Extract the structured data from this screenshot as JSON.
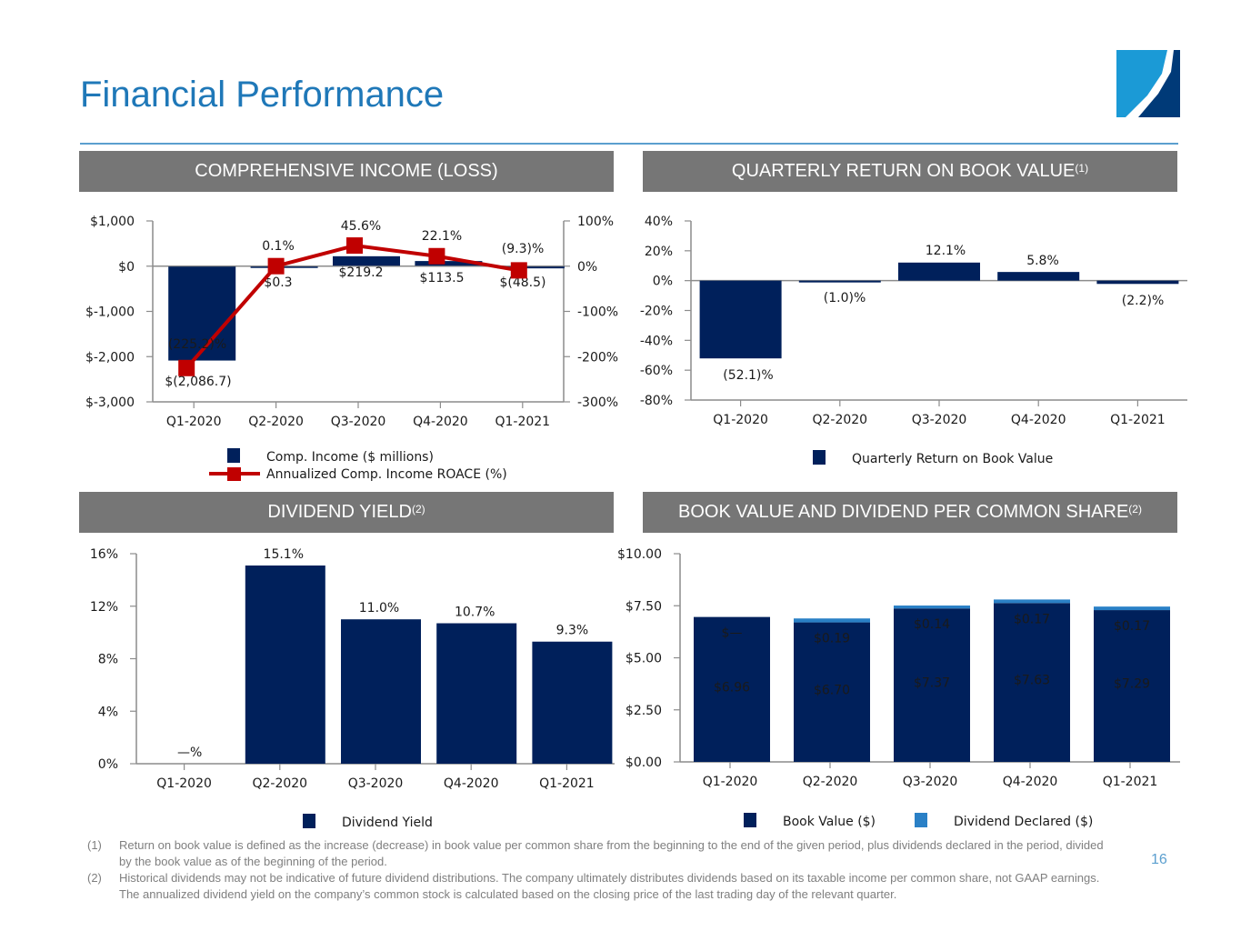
{
  "page": {
    "title": "Financial Performance",
    "page_number": "16",
    "colors": {
      "navy": "#00205b",
      "light_blue": "#2a80c6",
      "red": "#c00000",
      "header_gray": "#767676",
      "title_blue": "#1f78b8"
    }
  },
  "panels": {
    "comp_income": {
      "title": "COMPREHENSIVE INCOME (LOSS)",
      "sup": ""
    },
    "return_bv": {
      "title": "QUARTERLY RETURN ON BOOK VALUE",
      "sup": "(1)"
    },
    "div_yield": {
      "title": "DIVIDEND YIELD",
      "sup": "(2)"
    },
    "bv_div": {
      "title": "BOOK VALUE AND DIVIDEND PER COMMON SHARE",
      "sup": "(2)"
    }
  },
  "chart_data": [
    {
      "id": "comp_income",
      "type": "bar",
      "title": "COMPREHENSIVE INCOME (LOSS)",
      "categories": [
        "Q1-2020",
        "Q2-2020",
        "Q3-2020",
        "Q4-2020",
        "Q1-2021"
      ],
      "series": [
        {
          "name": "Comp. Income ($ millions)",
          "type": "bar",
          "axis": "left",
          "values": [
            -2086.7,
            0.3,
            219.2,
            113.5,
            -48.5
          ],
          "labels": [
            "$(2,086.7)",
            "$0.3",
            "$219.2",
            "$113.5",
            "$(48.5)"
          ]
        },
        {
          "name": "Annualized Comp. Income ROACE (%)",
          "type": "line",
          "axis": "right",
          "values": [
            -225.2,
            0.1,
            45.6,
            22.1,
            -9.3
          ],
          "labels": [
            "(225.2)%",
            "0.1%",
            "45.6%",
            "22.1%",
            "(9.3)%"
          ]
        }
      ],
      "ylim": [
        -3000,
        1000
      ],
      "yticks": [
        "$-3,000",
        "$-2,000",
        "$-1,000",
        "$0",
        "$1,000"
      ],
      "ytick_values": [
        -3000,
        -2000,
        -1000,
        0,
        1000
      ],
      "y2lim": [
        -300,
        100
      ],
      "y2ticks": [
        "-300%",
        "-200%",
        "-100%",
        "0%",
        "100%"
      ],
      "legend": "bottom"
    },
    {
      "id": "return_bv",
      "type": "bar",
      "title": "QUARTERLY RETURN ON BOOK VALUE",
      "categories": [
        "Q1-2020",
        "Q2-2020",
        "Q3-2020",
        "Q4-2020",
        "Q1-2021"
      ],
      "series": [
        {
          "name": "Quarterly Return on Book Value",
          "values": [
            -52.1,
            -1.0,
            12.1,
            5.8,
            -2.2
          ],
          "labels": [
            "(52.1)%",
            "(1.0)%",
            "12.1%",
            "5.8%",
            "(2.2)%"
          ]
        }
      ],
      "ylim": [
        -80,
        40
      ],
      "yticks": [
        "-80%",
        "-60%",
        "-40%",
        "-20%",
        "0%",
        "20%",
        "40%"
      ],
      "ytick_values": [
        -80,
        -60,
        -40,
        -20,
        0,
        20,
        40
      ],
      "legend": "bottom"
    },
    {
      "id": "div_yield",
      "type": "bar",
      "title": "DIVIDEND YIELD",
      "categories": [
        "Q1-2020",
        "Q2-2020",
        "Q3-2020",
        "Q4-2020",
        "Q1-2021"
      ],
      "series": [
        {
          "name": "Dividend Yield",
          "values": [
            0,
            15.1,
            11.0,
            10.7,
            9.3
          ],
          "labels": [
            "—%",
            "15.1%",
            "11.0%",
            "10.7%",
            "9.3%"
          ]
        }
      ],
      "ylim": [
        0,
        16
      ],
      "yticks": [
        "0%",
        "4%",
        "8%",
        "12%",
        "16%"
      ],
      "ytick_values": [
        0,
        4,
        8,
        12,
        16
      ],
      "legend": "bottom"
    },
    {
      "id": "bv_div",
      "type": "bar",
      "stacked": true,
      "title": "BOOK VALUE AND DIVIDEND PER COMMON SHARE",
      "categories": [
        "Q1-2020",
        "Q2-2020",
        "Q3-2020",
        "Q4-2020",
        "Q1-2021"
      ],
      "series": [
        {
          "name": "Book Value ($)",
          "values": [
            6.96,
            6.7,
            7.37,
            7.63,
            7.29
          ],
          "labels": [
            "$6.96",
            "$6.70",
            "$7.37",
            "$7.63",
            "$7.29"
          ]
        },
        {
          "name": "Dividend Declared ($)",
          "values": [
            0,
            0.19,
            0.14,
            0.17,
            0.17
          ],
          "labels": [
            "$—",
            "$0.19",
            "$0.14",
            "$0.17",
            "$0.17"
          ]
        }
      ],
      "ylim": [
        0,
        10
      ],
      "yticks": [
        "$0.00",
        "$2.50",
        "$5.00",
        "$7.50",
        "$10.00"
      ],
      "ytick_values": [
        0,
        2.5,
        5,
        7.5,
        10
      ],
      "legend": "bottom"
    }
  ],
  "footnotes": [
    {
      "num": "(1)",
      "text": "Return on book value is defined as the increase (decrease) in book value per common share from the beginning to the end of the given period, plus dividends declared in the period, divided by the book value as of the beginning of the period."
    },
    {
      "num": "(2)",
      "text": "Historical dividends may not be indicative of future dividend distributions.  The company ultimately distributes dividends based on its taxable income per common share, not GAAP earnings. The annualized dividend yield on the company’s common stock is calculated based on the closing price of the last trading day of the relevant quarter."
    }
  ]
}
